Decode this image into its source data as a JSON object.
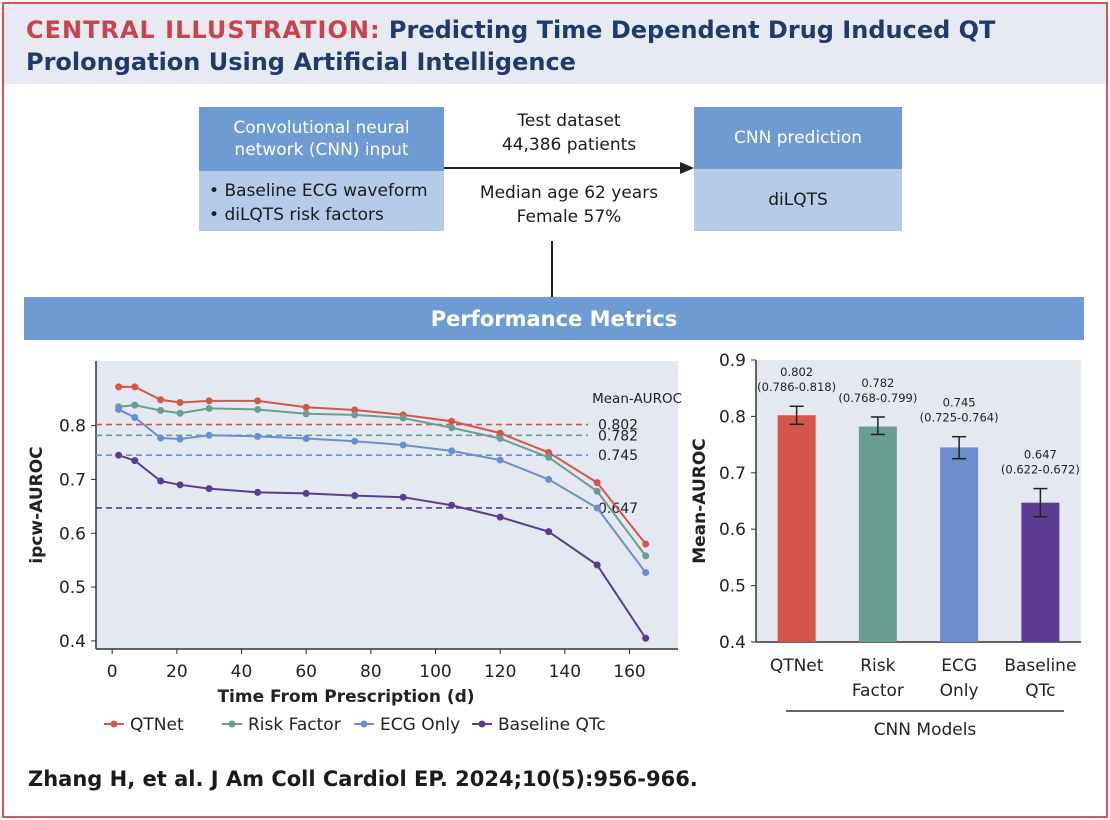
{
  "header": {
    "label": "CENTRAL ILLUSTRATION:",
    "title": "Predicting Time Dependent Drug Induced QT Prolongation Using Artificial Intelligence"
  },
  "flow": {
    "input_box": {
      "title": "Convolutional neural network (CNN) input",
      "items": [
        "Baseline ECG waveform",
        "diLQTS risk factors"
      ]
    },
    "dataset": {
      "line1": "Test dataset",
      "line2": "44,386 patients",
      "line3": "Median age 62 years",
      "line4": "Female 57%"
    },
    "output_box": {
      "title": "CNN prediction",
      "body": "diLQTS"
    }
  },
  "metrics_title": "Performance Metrics",
  "citation": "Zhang H, et al. J Am Coll Cardiol EP. 2024;10(5):956-966.",
  "colors": {
    "qtnet": "#d5554d",
    "risk_factor": "#6a9e93",
    "ecg_only": "#6b8fcd",
    "baseline_qtc": "#5c3c93"
  },
  "chart_data": [
    {
      "type": "line",
      "xlabel": "Time From Prescription (d)",
      "ylabel": "ipcw-AUROC",
      "xlim": [
        -5,
        175
      ],
      "ylim": [
        0.385,
        0.92
      ],
      "xticks": [
        0,
        20,
        40,
        60,
        80,
        100,
        120,
        140,
        160
      ],
      "yticks": [
        0.4,
        0.5,
        0.6,
        0.7,
        0.8
      ],
      "ytick_labels": [
        "0.4",
        "0.5",
        "0.6",
        "0.7",
        "0.8"
      ],
      "legend_position": "bottom",
      "reference_title": "Mean-AUROC",
      "reference_lines": [
        {
          "value": 0.802,
          "label": "0.802",
          "series": "QTNet"
        },
        {
          "value": 0.782,
          "label": "0.782",
          "series": "Risk Factor"
        },
        {
          "value": 0.745,
          "label": "0.745",
          "series": "ECG Only"
        },
        {
          "value": 0.647,
          "label": "0.647",
          "series": "Baseline QTc"
        }
      ],
      "series": [
        {
          "name": "QTNet",
          "color": "#d5554d",
          "x": [
            2,
            7,
            15,
            21,
            30,
            45,
            60,
            75,
            90,
            105,
            120,
            135,
            150,
            165
          ],
          "y": [
            0.872,
            0.872,
            0.848,
            0.843,
            0.846,
            0.846,
            0.834,
            0.829,
            0.82,
            0.808,
            0.786,
            0.75,
            0.694,
            0.58
          ]
        },
        {
          "name": "Risk Factor",
          "color": "#6a9e93",
          "x": [
            2,
            7,
            15,
            21,
            30,
            45,
            60,
            75,
            90,
            105,
            120,
            135,
            150,
            165
          ],
          "y": [
            0.835,
            0.838,
            0.828,
            0.823,
            0.832,
            0.83,
            0.822,
            0.82,
            0.814,
            0.796,
            0.776,
            0.741,
            0.678,
            0.558
          ]
        },
        {
          "name": "ECG Only",
          "color": "#6b8fcd",
          "x": [
            2,
            7,
            15,
            21,
            30,
            45,
            60,
            75,
            90,
            105,
            120,
            135,
            150,
            165
          ],
          "y": [
            0.83,
            0.815,
            0.777,
            0.775,
            0.782,
            0.78,
            0.776,
            0.771,
            0.764,
            0.753,
            0.736,
            0.7,
            0.647,
            0.527
          ]
        },
        {
          "name": "Baseline QTc",
          "color": "#5c3c93",
          "x": [
            2,
            7,
            15,
            21,
            30,
            45,
            60,
            75,
            90,
            105,
            120,
            135,
            150,
            165
          ],
          "y": [
            0.745,
            0.735,
            0.697,
            0.69,
            0.683,
            0.676,
            0.674,
            0.67,
            0.667,
            0.652,
            0.63,
            0.603,
            0.541,
            0.405
          ]
        }
      ]
    },
    {
      "type": "bar",
      "ylabel": "Mean-AUROC",
      "xlabel": "CNN Models",
      "ylim": [
        0.4,
        0.9
      ],
      "yticks": [
        0.4,
        0.5,
        0.6,
        0.7,
        0.8,
        0.9
      ],
      "ytick_labels": [
        "0.4",
        "0.5",
        "0.6",
        "0.7",
        "0.8",
        "0.9"
      ],
      "categories": [
        [
          "QTNet"
        ],
        [
          "Risk",
          "Factor"
        ],
        [
          "ECG",
          "Only"
        ],
        [
          "Baseline",
          "QTc"
        ]
      ],
      "values": [
        0.802,
        0.782,
        0.745,
        0.647
      ],
      "error_low": [
        0.786,
        0.768,
        0.725,
        0.622
      ],
      "error_high": [
        0.818,
        0.799,
        0.764,
        0.672
      ],
      "labels": [
        "0.802",
        "0.782",
        "0.745",
        "0.647"
      ],
      "ci_labels": [
        "(0.786-0.818)",
        "(0.768-0.799)",
        "(0.725-0.764)",
        "(0.622-0.672)"
      ],
      "colors": [
        "#d5554d",
        "#6a9e93",
        "#6b8fcd",
        "#5c3c93"
      ]
    }
  ]
}
